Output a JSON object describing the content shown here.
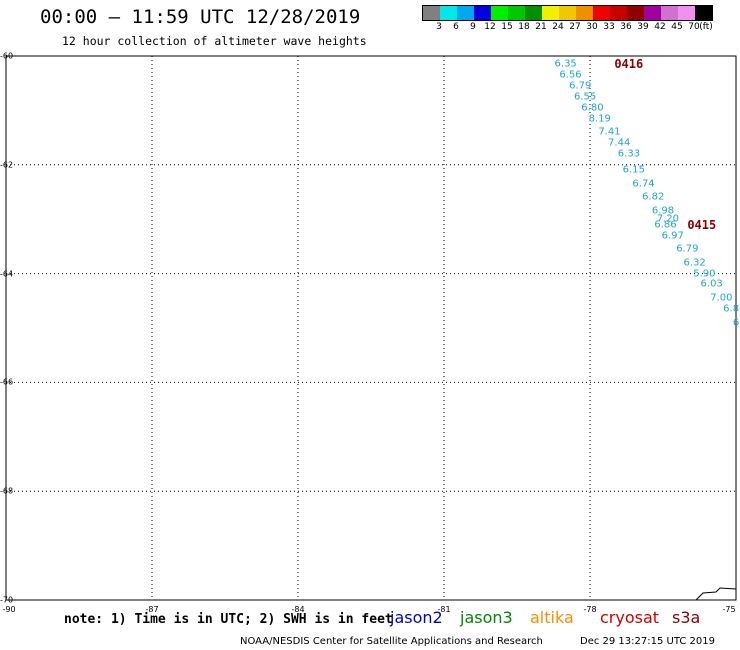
{
  "header": {
    "title": "00:00 — 11:59 UTC 12/28/2019",
    "subtitle": "12 hour collection of altimeter wave heights"
  },
  "legend": {
    "swatches": [
      "#808080",
      "#00e8e8",
      "#00a8f0",
      "#0000e0",
      "#00f000",
      "#00c800",
      "#009000",
      "#f0f000",
      "#f0c800",
      "#f09000",
      "#f00000",
      "#c80000",
      "#900000",
      "#a000a0",
      "#d070d0",
      "#f090f0",
      "#000000"
    ],
    "labels": [
      "3",
      "6",
      "9",
      "12",
      "15",
      "18",
      "21",
      "24",
      "27",
      "30",
      "33",
      "36",
      "39",
      "42",
      "45",
      "70",
      "(ft)"
    ]
  },
  "map": {
    "lat_ticks": [
      "-60",
      "-62",
      "-64",
      "-66",
      "-68",
      "-70"
    ],
    "lon_ticks": [
      "-90",
      "-87",
      "-84",
      "-81",
      "-78",
      "-75"
    ],
    "lat_values": [
      -60,
      -62,
      -64,
      -66,
      -68,
      -70
    ],
    "lon_values": [
      -87,
      -84,
      -81,
      -78
    ]
  },
  "tracks": [
    {
      "label": "0416",
      "lat": -60.15,
      "lon": -77.5
    },
    {
      "label": "0415",
      "lat": -63.1,
      "lon": -76.0
    }
  ],
  "observations": [
    {
      "v": "6.35",
      "lat": -60.15,
      "lon": -78.5
    },
    {
      "v": "6.56",
      "lat": -60.35,
      "lon": -78.4
    },
    {
      "v": "6.79",
      "lat": -60.55,
      "lon": -78.2
    },
    {
      "v": "6.55",
      "lat": -60.75,
      "lon": -78.1
    },
    {
      "v": "6.80",
      "lat": -60.95,
      "lon": -77.95
    },
    {
      "v": "8.19",
      "lat": -61.15,
      "lon": -77.8
    },
    {
      "v": "7.41",
      "lat": -61.4,
      "lon": -77.6
    },
    {
      "v": "7.44",
      "lat": -61.6,
      "lon": -77.4
    },
    {
      "v": "6.33",
      "lat": -61.8,
      "lon": -77.2
    },
    {
      "v": "6.15",
      "lat": -62.1,
      "lon": -77.1
    },
    {
      "v": "6.74",
      "lat": -62.35,
      "lon": -76.9
    },
    {
      "v": "6.82",
      "lat": -62.6,
      "lon": -76.7
    },
    {
      "v": "6.98",
      "lat": -62.85,
      "lon": -76.5
    },
    {
      "v": "7.20",
      "lat": -63.0,
      "lon": -76.4
    },
    {
      "v": "6.86",
      "lat": -63.1,
      "lon": -76.45
    },
    {
      "v": "6.97",
      "lat": -63.3,
      "lon": -76.3
    },
    {
      "v": "6.79",
      "lat": -63.55,
      "lon": -76.0
    },
    {
      "v": "6.32",
      "lat": -63.8,
      "lon": -75.85
    },
    {
      "v": "5.90",
      "lat": -64.0,
      "lon": -75.65
    },
    {
      "v": "6.03",
      "lat": -64.2,
      "lon": -75.5
    },
    {
      "v": "7.00",
      "lat": -64.45,
      "lon": -75.3
    },
    {
      "v": "6.8",
      "lat": -64.65,
      "lon": -75.1
    },
    {
      "v": "6",
      "lat": -64.9,
      "lon": -75.0
    }
  ],
  "footer": {
    "note": "note: 1) Time is in UTC; 2) SWH is in feet",
    "satellites": [
      {
        "name": "jason2",
        "color": "#0000cc"
      },
      {
        "name": "jason3",
        "color": "#008800"
      },
      {
        "name": "altika",
        "color": "#ff8c00"
      },
      {
        "name": "cryosat",
        "color": "#d00000"
      },
      {
        "name": "s3a",
        "color": "#8b0000"
      }
    ],
    "credit": "NOAA/NESDIS Center for Satellite Applications and Research",
    "timestamp": "Dec 29 13:27:15 UTC 2019"
  }
}
